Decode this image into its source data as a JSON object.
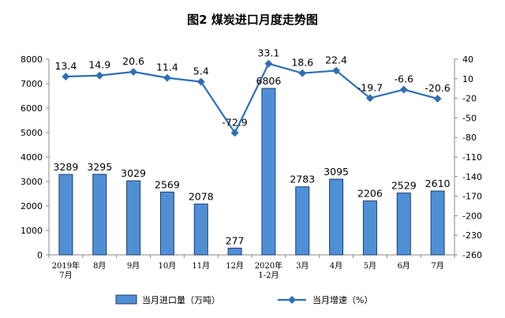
{
  "chart_data": {
    "type": "bar",
    "title": "图2  煤炭进口月度走势图",
    "categories": [
      [
        "2019年",
        "7月"
      ],
      [
        "8月"
      ],
      [
        "9月"
      ],
      [
        "10月"
      ],
      [
        "11月"
      ],
      [
        "12月"
      ],
      [
        "2020年",
        "1-2月"
      ],
      [
        "3月"
      ],
      [
        "4月"
      ],
      [
        "5月"
      ],
      [
        "6月"
      ],
      [
        "7月"
      ]
    ],
    "series": [
      {
        "name": "当月进口量（万吨）",
        "type": "bar",
        "axis": "left",
        "color": "#4f8fd6",
        "values": [
          3289,
          3295,
          3029,
          2569,
          2078,
          277,
          6806,
          2783,
          3095,
          2206,
          2529,
          2610
        ]
      },
      {
        "name": "当月增速（%）",
        "type": "line",
        "axis": "right",
        "color": "#2e6fb5",
        "values": [
          13.4,
          14.9,
          20.6,
          11.4,
          5.4,
          -72.9,
          33.1,
          18.6,
          22.4,
          -19.7,
          -6.6,
          -20.6
        ]
      }
    ],
    "ylim_left": [
      0,
      8000
    ],
    "yticks_left": [
      0,
      1000,
      2000,
      3000,
      4000,
      5000,
      6000,
      7000,
      8000
    ],
    "ylim_right": [
      -260,
      40
    ],
    "yticks_right": [
      40,
      10,
      -20,
      -50,
      -80,
      -110,
      -140,
      -170,
      -200,
      -230,
      -260
    ],
    "grid": false,
    "legend_position": "bottom"
  }
}
